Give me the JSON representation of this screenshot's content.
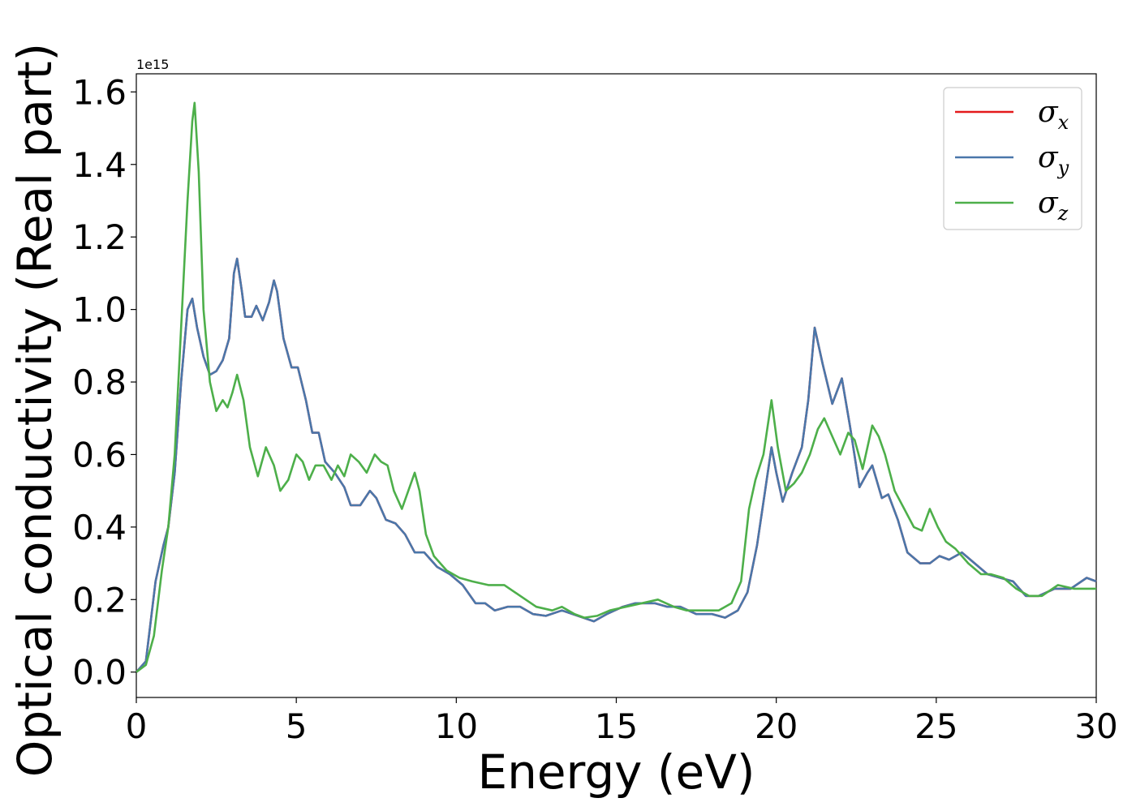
{
  "chart_data": {
    "type": "line",
    "title": "",
    "xlabel": "Energy (eV)",
    "ylabel": "Optical conductivity (Real part)",
    "y_offset_text": "1e15",
    "y_scale": 1000000000000000.0,
    "xlim": [
      0,
      30
    ],
    "ylim": [
      -0.07,
      1.65
    ],
    "x_ticks": [
      0,
      5,
      10,
      15,
      20,
      25,
      30
    ],
    "x_tick_labels": [
      "0",
      "5",
      "10",
      "15",
      "20",
      "25",
      "30"
    ],
    "y_ticks": [
      0.0,
      0.2,
      0.4,
      0.6,
      0.8,
      1.0,
      1.2,
      1.4,
      1.6
    ],
    "y_tick_labels": [
      "0.0",
      "0.2",
      "0.4",
      "0.6",
      "0.8",
      "1.0",
      "1.2",
      "1.4",
      "1.6"
    ],
    "grid": false,
    "legend_position": "top-right",
    "series": [
      {
        "name": "σx",
        "legend_symbol": "σ",
        "legend_sub": "x",
        "color": "#e41a1c",
        "points": [
          [
            0,
            0
          ],
          [
            0.3,
            0.03
          ],
          [
            0.6,
            0.25
          ],
          [
            0.85,
            0.35
          ],
          [
            1.0,
            0.4
          ],
          [
            1.2,
            0.55
          ],
          [
            1.4,
            0.8
          ],
          [
            1.6,
            1.0
          ],
          [
            1.75,
            1.03
          ],
          [
            1.9,
            0.95
          ],
          [
            2.1,
            0.87
          ],
          [
            2.3,
            0.82
          ],
          [
            2.5,
            0.83
          ],
          [
            2.7,
            0.86
          ],
          [
            2.9,
            0.92
          ],
          [
            3.05,
            1.1
          ],
          [
            3.15,
            1.14
          ],
          [
            3.3,
            1.05
          ],
          [
            3.4,
            0.98
          ],
          [
            3.6,
            0.98
          ],
          [
            3.75,
            1.01
          ],
          [
            3.95,
            0.97
          ],
          [
            4.15,
            1.02
          ],
          [
            4.3,
            1.08
          ],
          [
            4.4,
            1.05
          ],
          [
            4.6,
            0.92
          ],
          [
            4.85,
            0.84
          ],
          [
            5.05,
            0.84
          ],
          [
            5.3,
            0.75
          ],
          [
            5.5,
            0.66
          ],
          [
            5.7,
            0.66
          ],
          [
            5.9,
            0.58
          ],
          [
            6.2,
            0.55
          ],
          [
            6.5,
            0.51
          ],
          [
            6.7,
            0.46
          ],
          [
            7.0,
            0.46
          ],
          [
            7.3,
            0.5
          ],
          [
            7.5,
            0.48
          ],
          [
            7.8,
            0.42
          ],
          [
            8.1,
            0.41
          ],
          [
            8.4,
            0.38
          ],
          [
            8.7,
            0.33
          ],
          [
            9.0,
            0.33
          ],
          [
            9.4,
            0.29
          ],
          [
            9.8,
            0.27
          ],
          [
            10.2,
            0.24
          ],
          [
            10.6,
            0.19
          ],
          [
            10.9,
            0.19
          ],
          [
            11.2,
            0.17
          ],
          [
            11.6,
            0.18
          ],
          [
            12.0,
            0.18
          ],
          [
            12.4,
            0.16
          ],
          [
            12.8,
            0.155
          ],
          [
            13.3,
            0.17
          ],
          [
            13.8,
            0.155
          ],
          [
            14.3,
            0.14
          ],
          [
            14.7,
            0.16
          ],
          [
            15.2,
            0.18
          ],
          [
            15.6,
            0.19
          ],
          [
            16.2,
            0.19
          ],
          [
            16.6,
            0.18
          ],
          [
            17.0,
            0.18
          ],
          [
            17.5,
            0.16
          ],
          [
            18.0,
            0.16
          ],
          [
            18.4,
            0.15
          ],
          [
            18.8,
            0.17
          ],
          [
            19.1,
            0.22
          ],
          [
            19.4,
            0.35
          ],
          [
            19.65,
            0.5
          ],
          [
            19.85,
            0.62
          ],
          [
            20.0,
            0.55
          ],
          [
            20.2,
            0.47
          ],
          [
            20.5,
            0.55
          ],
          [
            20.8,
            0.62
          ],
          [
            21.0,
            0.75
          ],
          [
            21.2,
            0.95
          ],
          [
            21.45,
            0.85
          ],
          [
            21.75,
            0.74
          ],
          [
            22.05,
            0.81
          ],
          [
            22.3,
            0.68
          ],
          [
            22.6,
            0.51
          ],
          [
            22.85,
            0.55
          ],
          [
            23.0,
            0.57
          ],
          [
            23.3,
            0.48
          ],
          [
            23.5,
            0.49
          ],
          [
            23.8,
            0.42
          ],
          [
            24.1,
            0.33
          ],
          [
            24.5,
            0.3
          ],
          [
            24.8,
            0.3
          ],
          [
            25.1,
            0.32
          ],
          [
            25.4,
            0.31
          ],
          [
            25.8,
            0.33
          ],
          [
            26.2,
            0.3
          ],
          [
            26.6,
            0.27
          ],
          [
            27.0,
            0.26
          ],
          [
            27.4,
            0.25
          ],
          [
            27.8,
            0.21
          ],
          [
            28.2,
            0.21
          ],
          [
            28.7,
            0.23
          ],
          [
            29.2,
            0.23
          ],
          [
            29.7,
            0.26
          ],
          [
            30,
            0.25
          ]
        ]
      },
      {
        "name": "σy",
        "legend_symbol": "σ",
        "legend_sub": "y",
        "color": "#4a77aa",
        "points": [
          [
            0,
            0
          ],
          [
            0.3,
            0.03
          ],
          [
            0.6,
            0.25
          ],
          [
            0.85,
            0.35
          ],
          [
            1.0,
            0.4
          ],
          [
            1.2,
            0.55
          ],
          [
            1.4,
            0.8
          ],
          [
            1.6,
            1.0
          ],
          [
            1.75,
            1.03
          ],
          [
            1.9,
            0.95
          ],
          [
            2.1,
            0.87
          ],
          [
            2.3,
            0.82
          ],
          [
            2.5,
            0.83
          ],
          [
            2.7,
            0.86
          ],
          [
            2.9,
            0.92
          ],
          [
            3.05,
            1.1
          ],
          [
            3.15,
            1.14
          ],
          [
            3.3,
            1.05
          ],
          [
            3.4,
            0.98
          ],
          [
            3.6,
            0.98
          ],
          [
            3.75,
            1.01
          ],
          [
            3.95,
            0.97
          ],
          [
            4.15,
            1.02
          ],
          [
            4.3,
            1.08
          ],
          [
            4.4,
            1.05
          ],
          [
            4.6,
            0.92
          ],
          [
            4.85,
            0.84
          ],
          [
            5.05,
            0.84
          ],
          [
            5.3,
            0.75
          ],
          [
            5.5,
            0.66
          ],
          [
            5.7,
            0.66
          ],
          [
            5.9,
            0.58
          ],
          [
            6.2,
            0.55
          ],
          [
            6.5,
            0.51
          ],
          [
            6.7,
            0.46
          ],
          [
            7.0,
            0.46
          ],
          [
            7.3,
            0.5
          ],
          [
            7.5,
            0.48
          ],
          [
            7.8,
            0.42
          ],
          [
            8.1,
            0.41
          ],
          [
            8.4,
            0.38
          ],
          [
            8.7,
            0.33
          ],
          [
            9.0,
            0.33
          ],
          [
            9.4,
            0.29
          ],
          [
            9.8,
            0.27
          ],
          [
            10.2,
            0.24
          ],
          [
            10.6,
            0.19
          ],
          [
            10.9,
            0.19
          ],
          [
            11.2,
            0.17
          ],
          [
            11.6,
            0.18
          ],
          [
            12.0,
            0.18
          ],
          [
            12.4,
            0.16
          ],
          [
            12.8,
            0.155
          ],
          [
            13.3,
            0.17
          ],
          [
            13.8,
            0.155
          ],
          [
            14.3,
            0.14
          ],
          [
            14.7,
            0.16
          ],
          [
            15.2,
            0.18
          ],
          [
            15.6,
            0.19
          ],
          [
            16.2,
            0.19
          ],
          [
            16.6,
            0.18
          ],
          [
            17.0,
            0.18
          ],
          [
            17.5,
            0.16
          ],
          [
            18.0,
            0.16
          ],
          [
            18.4,
            0.15
          ],
          [
            18.8,
            0.17
          ],
          [
            19.1,
            0.22
          ],
          [
            19.4,
            0.35
          ],
          [
            19.65,
            0.5
          ],
          [
            19.85,
            0.62
          ],
          [
            20.0,
            0.55
          ],
          [
            20.2,
            0.47
          ],
          [
            20.5,
            0.55
          ],
          [
            20.8,
            0.62
          ],
          [
            21.0,
            0.75
          ],
          [
            21.2,
            0.95
          ],
          [
            21.45,
            0.85
          ],
          [
            21.75,
            0.74
          ],
          [
            22.05,
            0.81
          ],
          [
            22.3,
            0.68
          ],
          [
            22.6,
            0.51
          ],
          [
            22.85,
            0.55
          ],
          [
            23.0,
            0.57
          ],
          [
            23.3,
            0.48
          ],
          [
            23.5,
            0.49
          ],
          [
            23.8,
            0.42
          ],
          [
            24.1,
            0.33
          ],
          [
            24.5,
            0.3
          ],
          [
            24.8,
            0.3
          ],
          [
            25.1,
            0.32
          ],
          [
            25.4,
            0.31
          ],
          [
            25.8,
            0.33
          ],
          [
            26.2,
            0.3
          ],
          [
            26.6,
            0.27
          ],
          [
            27.0,
            0.26
          ],
          [
            27.4,
            0.25
          ],
          [
            27.8,
            0.21
          ],
          [
            28.2,
            0.21
          ],
          [
            28.7,
            0.23
          ],
          [
            29.2,
            0.23
          ],
          [
            29.7,
            0.26
          ],
          [
            30,
            0.25
          ]
        ]
      },
      {
        "name": "σz",
        "legend_symbol": "σ",
        "legend_sub": "z",
        "color": "#4daf4a",
        "points": [
          [
            0,
            0
          ],
          [
            0.3,
            0.02
          ],
          [
            0.55,
            0.1
          ],
          [
            0.8,
            0.28
          ],
          [
            1.0,
            0.4
          ],
          [
            1.2,
            0.6
          ],
          [
            1.4,
            0.95
          ],
          [
            1.6,
            1.3
          ],
          [
            1.75,
            1.52
          ],
          [
            1.82,
            1.57
          ],
          [
            1.95,
            1.38
          ],
          [
            2.1,
            1.0
          ],
          [
            2.3,
            0.8
          ],
          [
            2.5,
            0.72
          ],
          [
            2.7,
            0.75
          ],
          [
            2.85,
            0.73
          ],
          [
            3.0,
            0.77
          ],
          [
            3.15,
            0.82
          ],
          [
            3.35,
            0.75
          ],
          [
            3.55,
            0.62
          ],
          [
            3.8,
            0.54
          ],
          [
            4.05,
            0.62
          ],
          [
            4.3,
            0.57
          ],
          [
            4.5,
            0.5
          ],
          [
            4.75,
            0.53
          ],
          [
            5.0,
            0.6
          ],
          [
            5.2,
            0.58
          ],
          [
            5.4,
            0.53
          ],
          [
            5.6,
            0.57
          ],
          [
            5.85,
            0.57
          ],
          [
            6.1,
            0.53
          ],
          [
            6.3,
            0.57
          ],
          [
            6.5,
            0.54
          ],
          [
            6.7,
            0.6
          ],
          [
            6.95,
            0.58
          ],
          [
            7.2,
            0.55
          ],
          [
            7.45,
            0.6
          ],
          [
            7.65,
            0.58
          ],
          [
            7.85,
            0.57
          ],
          [
            8.05,
            0.5
          ],
          [
            8.3,
            0.45
          ],
          [
            8.5,
            0.5
          ],
          [
            8.7,
            0.55
          ],
          [
            8.85,
            0.5
          ],
          [
            9.05,
            0.38
          ],
          [
            9.3,
            0.32
          ],
          [
            9.7,
            0.28
          ],
          [
            10.1,
            0.26
          ],
          [
            10.5,
            0.25
          ],
          [
            11.0,
            0.24
          ],
          [
            11.5,
            0.24
          ],
          [
            12.0,
            0.21
          ],
          [
            12.5,
            0.18
          ],
          [
            13.0,
            0.17
          ],
          [
            13.3,
            0.18
          ],
          [
            13.7,
            0.16
          ],
          [
            14.0,
            0.15
          ],
          [
            14.4,
            0.155
          ],
          [
            14.8,
            0.17
          ],
          [
            15.3,
            0.18
          ],
          [
            15.8,
            0.19
          ],
          [
            16.3,
            0.2
          ],
          [
            16.8,
            0.18
          ],
          [
            17.2,
            0.17
          ],
          [
            17.7,
            0.17
          ],
          [
            18.2,
            0.17
          ],
          [
            18.6,
            0.19
          ],
          [
            18.9,
            0.25
          ],
          [
            19.15,
            0.45
          ],
          [
            19.35,
            0.53
          ],
          [
            19.6,
            0.6
          ],
          [
            19.85,
            0.75
          ],
          [
            20.05,
            0.62
          ],
          [
            20.3,
            0.5
          ],
          [
            20.55,
            0.52
          ],
          [
            20.8,
            0.55
          ],
          [
            21.05,
            0.6
          ],
          [
            21.3,
            0.67
          ],
          [
            21.5,
            0.7
          ],
          [
            21.75,
            0.65
          ],
          [
            22.0,
            0.6
          ],
          [
            22.25,
            0.66
          ],
          [
            22.45,
            0.64
          ],
          [
            22.7,
            0.56
          ],
          [
            23.0,
            0.68
          ],
          [
            23.2,
            0.65
          ],
          [
            23.4,
            0.6
          ],
          [
            23.7,
            0.5
          ],
          [
            24.0,
            0.45
          ],
          [
            24.3,
            0.4
          ],
          [
            24.55,
            0.39
          ],
          [
            24.8,
            0.45
          ],
          [
            25.05,
            0.4
          ],
          [
            25.3,
            0.36
          ],
          [
            25.6,
            0.34
          ],
          [
            26.0,
            0.3
          ],
          [
            26.4,
            0.27
          ],
          [
            26.7,
            0.27
          ],
          [
            27.1,
            0.26
          ],
          [
            27.5,
            0.23
          ],
          [
            27.9,
            0.21
          ],
          [
            28.3,
            0.21
          ],
          [
            28.8,
            0.24
          ],
          [
            29.3,
            0.23
          ],
          [
            29.7,
            0.23
          ],
          [
            30,
            0.23
          ]
        ]
      }
    ]
  }
}
